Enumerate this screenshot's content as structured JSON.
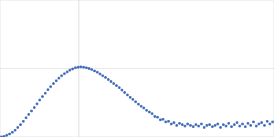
{
  "chart_data": {
    "type": "scatter",
    "x": [
      2,
      6,
      10,
      14,
      18,
      22,
      26,
      30,
      34,
      38,
      42,
      46,
      50,
      54,
      58,
      62,
      66,
      70,
      74,
      78,
      82,
      86,
      90,
      94,
      98,
      102,
      106,
      110,
      114,
      118,
      122,
      126,
      130,
      134,
      138,
      142,
      146,
      150,
      154,
      158,
      162,
      166,
      170,
      174,
      178,
      182,
      186,
      190,
      194,
      198,
      202,
      206,
      210,
      214,
      218,
      222,
      226,
      230,
      234,
      238,
      242,
      246,
      250,
      254,
      258,
      262,
      266,
      270,
      274,
      278,
      282,
      286,
      290,
      294,
      298,
      302,
      306,
      310,
      314,
      318,
      322,
      326,
      330,
      334,
      338,
      342,
      346,
      350,
      354,
      358,
      362,
      366,
      370,
      374,
      378,
      382,
      386,
      390,
      394,
      398
    ],
    "values": [
      0.3,
      1,
      2.5,
      4.5,
      7,
      10,
      14,
      18,
      23,
      28,
      33,
      38,
      43,
      48.5,
      54,
      59,
      64,
      69,
      73.5,
      78,
      82,
      86,
      89.5,
      92.5,
      95,
      97.5,
      99.5,
      101,
      102,
      102.5,
      102,
      101,
      100,
      98.5,
      96.5,
      94.5,
      92,
      89.5,
      87,
      84,
      81,
      78,
      75,
      72,
      68.5,
      65,
      61.5,
      58,
      55,
      51.5,
      48,
      45,
      42.5,
      39,
      36.5,
      34,
      30,
      29,
      25,
      26,
      22,
      23,
      19,
      21,
      17,
      20,
      18,
      16,
      19,
      17,
      15,
      18,
      16,
      19,
      14,
      17,
      18,
      15,
      17,
      19,
      14,
      18,
      16,
      20,
      15,
      18,
      21,
      16,
      19,
      15,
      20,
      17,
      22,
      16,
      19,
      21,
      17,
      23,
      19,
      22
    ],
    "color": "#3a66b8",
    "marker": "circle",
    "xlim": [
      0,
      400
    ],
    "ylim": [
      0,
      200
    ],
    "xticks": [
      115
    ],
    "yticks": [
      100
    ],
    "grid": true,
    "tick_labels": false
  }
}
